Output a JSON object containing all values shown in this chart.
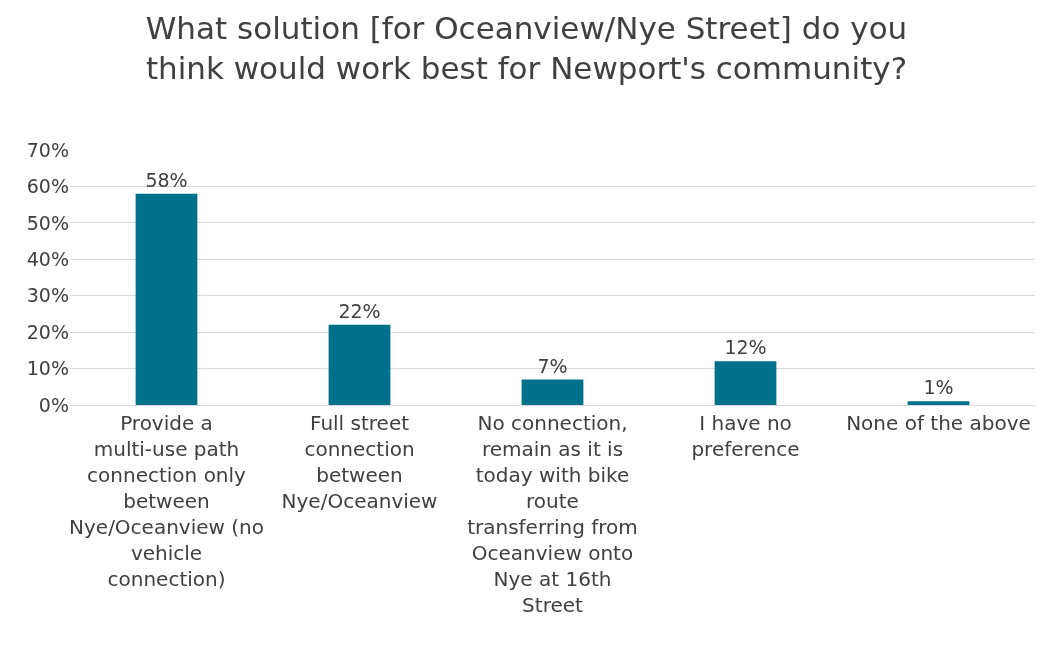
{
  "chart_data": {
    "type": "bar",
    "title": "What solution [for Oceanview/Nye Street] do you think would work best for Newport's community?",
    "categories": [
      "Provide a multi-use path connection only between Nye/Oceanview (no vehicle connection)",
      "Full street connection between Nye/Oceanview",
      "No connection, remain as it is today with bike route transferring from Oceanview onto Nye at 16th Street",
      "I have no preference",
      "None of the above"
    ],
    "values": [
      58,
      22,
      7,
      12,
      1
    ],
    "value_labels": [
      "58%",
      "22%",
      "7%",
      "12%",
      "1%"
    ],
    "color": "#00718b",
    "ylim": [
      0,
      70
    ],
    "yticks": [
      {
        "value": 0,
        "label": "0%"
      },
      {
        "value": 10,
        "label": "10%"
      },
      {
        "value": 20,
        "label": "20%"
      },
      {
        "value": 30,
        "label": "30%"
      },
      {
        "value": 40,
        "label": "40%"
      },
      {
        "value": 50,
        "label": "50%"
      },
      {
        "value": 60,
        "label": "60%"
      },
      {
        "value": 70,
        "label": "70%"
      }
    ],
    "grid": "y",
    "legend": false
  }
}
